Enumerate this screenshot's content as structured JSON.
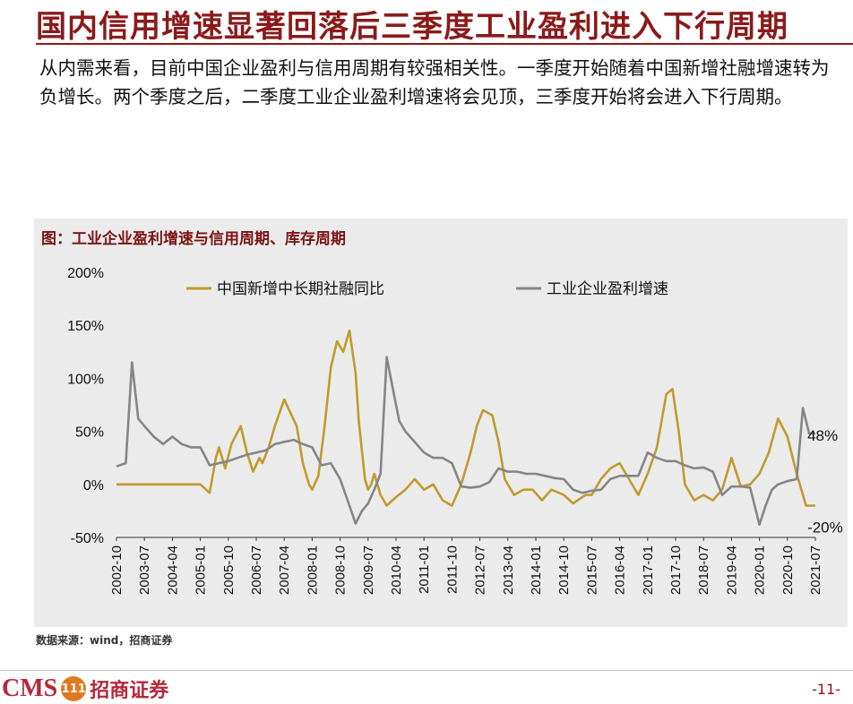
{
  "header": {
    "title": "国内信用增速显著回落后三季度工业盈利进入下行周期"
  },
  "body": {
    "text": "从内需来看，目前中国企业盈利与信用周期有较强相关性。一季度开始随着中国新增社融增速转为负增长。两个季度之后，二季度工业企业盈利增速将会见顶，三季度开始将会进入下行周期。"
  },
  "figure": {
    "caption": "图：工业企业盈利增速与信用周期、库存周期",
    "source": "数据来源：wind，招商证券"
  },
  "footer": {
    "logo_text": "CMS",
    "logo_badge": "111",
    "logo_cn": "招商证券",
    "page": "-11-"
  },
  "colors": {
    "social_financing": "#c09a2c",
    "industrial_profit": "#858585",
    "brand": "#8b1a1a"
  },
  "chart_data": {
    "type": "line",
    "title": "",
    "xlabel": "",
    "ylabel": "",
    "ylim": [
      -0.5,
      2.0
    ],
    "yticks": [
      "200%",
      "150%",
      "100%",
      "50%",
      "0%",
      "-50%"
    ],
    "ytick_values": [
      2.0,
      1.5,
      1.0,
      0.5,
      0.0,
      -0.5
    ],
    "xrange": [
      "2002-10",
      "2021-07"
    ],
    "xticks": [
      "2002-10",
      "2003-07",
      "2004-04",
      "2005-01",
      "2005-10",
      "2006-07",
      "2007-04",
      "2008-01",
      "2008-10",
      "2009-07",
      "2010-04",
      "2011-01",
      "2011-10",
      "2012-07",
      "2013-04",
      "2014-01",
      "2014-10",
      "2015-07",
      "2016-04",
      "2017-01",
      "2017-10",
      "2018-07",
      "2019-04",
      "2020-01",
      "2020-10",
      "2021-07"
    ],
    "legend_placement": "top",
    "grid": false,
    "annotations": [
      {
        "text": "48%",
        "x": "2021-05",
        "y": 0.48
      },
      {
        "text": "-20%",
        "x": "2021-05",
        "y": -0.2
      }
    ],
    "series": [
      {
        "name": "中国新增中长期社融同比",
        "x": [
          "2002-10",
          "2003-07",
          "2004-04",
          "2005-01",
          "2005-04",
          "2005-06",
          "2005-07",
          "2005-09",
          "2005-11",
          "2006-02",
          "2006-04",
          "2006-06",
          "2006-08",
          "2006-09",
          "2006-11",
          "2007-01",
          "2007-04",
          "2007-08",
          "2007-10",
          "2007-12",
          "2008-01",
          "2008-03",
          "2008-05",
          "2008-07",
          "2008-09",
          "2008-11",
          "2009-01",
          "2009-03",
          "2009-04",
          "2009-06",
          "2009-07",
          "2009-08",
          "2009-09",
          "2009-11",
          "2010-01",
          "2010-04",
          "2010-07",
          "2010-10",
          "2011-01",
          "2011-04",
          "2011-07",
          "2011-10",
          "2012-01",
          "2012-04",
          "2012-06",
          "2012-08",
          "2012-11",
          "2013-01",
          "2013-03",
          "2013-06",
          "2013-09",
          "2013-12",
          "2014-03",
          "2014-06",
          "2014-10",
          "2015-01",
          "2015-05",
          "2015-07",
          "2015-10",
          "2016-01",
          "2016-04",
          "2016-07",
          "2016-10",
          "2017-01",
          "2017-04",
          "2017-07",
          "2017-09",
          "2017-11",
          "2018-01",
          "2018-04",
          "2018-07",
          "2018-10",
          "2019-01",
          "2019-04",
          "2019-07",
          "2019-10",
          "2020-01",
          "2020-04",
          "2020-07",
          "2020-10",
          "2021-01",
          "2021-04",
          "2021-07"
        ],
        "values": [
          0,
          0,
          0,
          0,
          -0.08,
          0.25,
          0.35,
          0.15,
          0.38,
          0.55,
          0.3,
          0.12,
          0.25,
          0.2,
          0.35,
          0.55,
          0.8,
          0.55,
          0.2,
          0.0,
          -0.05,
          0.08,
          0.55,
          1.1,
          1.35,
          1.25,
          1.45,
          1.05,
          0.6,
          0.05,
          -0.05,
          0.0,
          0.1,
          -0.1,
          -0.2,
          -0.12,
          -0.05,
          0.05,
          -0.05,
          0.0,
          -0.15,
          -0.2,
          0.0,
          0.3,
          0.55,
          0.7,
          0.65,
          0.4,
          0.05,
          -0.1,
          -0.05,
          -0.05,
          -0.15,
          -0.05,
          -0.1,
          -0.18,
          -0.1,
          -0.1,
          0.05,
          0.15,
          0.2,
          0.05,
          -0.1,
          0.1,
          0.35,
          0.85,
          0.9,
          0.5,
          0.0,
          -0.15,
          -0.1,
          -0.15,
          -0.05,
          0.25,
          -0.02,
          0.0,
          0.1,
          0.3,
          0.62,
          0.45,
          0.1,
          -0.2,
          -0.2
        ]
      },
      {
        "name": "工业企业盈利增速",
        "x": [
          "2002-10",
          "2003-01",
          "2003-03",
          "2003-05",
          "2003-07",
          "2003-10",
          "2004-01",
          "2004-04",
          "2004-07",
          "2004-10",
          "2005-01",
          "2005-04",
          "2005-07",
          "2005-10",
          "2006-01",
          "2006-04",
          "2006-07",
          "2006-10",
          "2007-01",
          "2007-04",
          "2007-07",
          "2007-10",
          "2008-01",
          "2008-04",
          "2008-07",
          "2008-10",
          "2009-01",
          "2009-03",
          "2009-05",
          "2009-07",
          "2009-09",
          "2009-11",
          "2010-01",
          "2010-03",
          "2010-05",
          "2010-07",
          "2010-10",
          "2011-01",
          "2011-04",
          "2011-07",
          "2011-10",
          "2012-01",
          "2012-04",
          "2012-07",
          "2012-10",
          "2013-01",
          "2013-04",
          "2013-07",
          "2013-10",
          "2014-01",
          "2014-04",
          "2014-07",
          "2014-10",
          "2015-01",
          "2015-04",
          "2015-07",
          "2015-10",
          "2016-01",
          "2016-04",
          "2016-07",
          "2016-10",
          "2017-01",
          "2017-04",
          "2017-07",
          "2017-10",
          "2018-01",
          "2018-04",
          "2018-07",
          "2018-10",
          "2019-01",
          "2019-04",
          "2019-07",
          "2019-10",
          "2020-01",
          "2020-03",
          "2020-05",
          "2020-07",
          "2020-10",
          "2021-01",
          "2021-03",
          "2021-05",
          "2021-07"
        ],
        "values": [
          0.17,
          0.2,
          1.15,
          0.62,
          0.55,
          0.45,
          0.38,
          0.45,
          0.38,
          0.35,
          0.35,
          0.18,
          0.2,
          0.22,
          0.25,
          0.28,
          0.3,
          0.32,
          0.38,
          0.4,
          0.42,
          0.38,
          0.35,
          0.18,
          0.2,
          0.05,
          -0.2,
          -0.37,
          -0.25,
          -0.18,
          -0.05,
          0.1,
          1.2,
          0.9,
          0.6,
          0.5,
          0.4,
          0.3,
          0.25,
          0.25,
          0.2,
          -0.02,
          -0.03,
          -0.02,
          0.02,
          0.15,
          0.12,
          0.12,
          0.1,
          0.1,
          0.08,
          0.06,
          0.05,
          -0.05,
          -0.08,
          -0.06,
          -0.05,
          0.05,
          0.08,
          0.08,
          0.08,
          0.3,
          0.25,
          0.22,
          0.22,
          0.18,
          0.15,
          0.16,
          0.12,
          -0.1,
          -0.02,
          -0.02,
          -0.03,
          -0.38,
          -0.2,
          -0.05,
          0.0,
          0.03,
          0.05,
          0.72,
          0.48,
          0.48
        ]
      }
    ]
  }
}
